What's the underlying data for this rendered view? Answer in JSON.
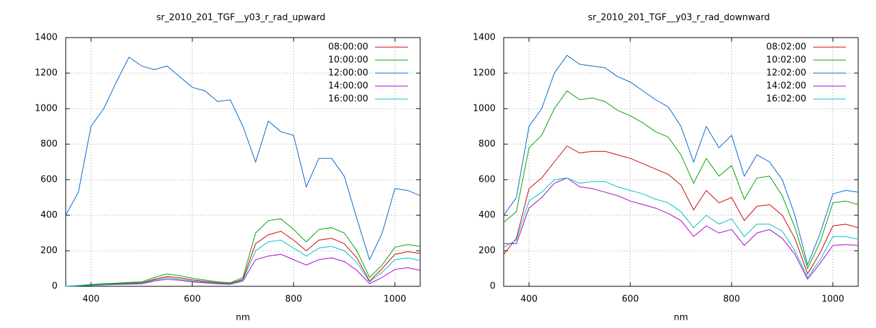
{
  "chart_data": [
    {
      "type": "line",
      "title": "sr_2010_201_TGF__y03_r_rad_upward",
      "x_label": "nm",
      "x": [
        350,
        375,
        400,
        425,
        450,
        475,
        500,
        525,
        550,
        575,
        600,
        625,
        650,
        675,
        700,
        725,
        750,
        775,
        800,
        825,
        850,
        875,
        900,
        925,
        950,
        975,
        1000,
        1025,
        1050
      ],
      "xlim": [
        350,
        1050
      ],
      "xticks": [
        400,
        600,
        800,
        1000
      ],
      "ylim": [
        0,
        1400
      ],
      "yticks": [
        0,
        200,
        400,
        600,
        800,
        1000,
        1200,
        1400
      ],
      "grid": true,
      "legend": "top-right",
      "series": [
        {
          "name": "08:00:00",
          "color": "#cc0000",
          "values": [
            0,
            4,
            8,
            12,
            15,
            18,
            20,
            40,
            55,
            48,
            36,
            28,
            20,
            16,
            40,
            240,
            290,
            310,
            260,
            200,
            260,
            270,
            240,
            160,
            30,
            100,
            180,
            195,
            185
          ]
        },
        {
          "name": "10:00:00",
          "color": "#00a000",
          "values": [
            0,
            5,
            10,
            15,
            18,
            22,
            25,
            50,
            70,
            60,
            45,
            35,
            25,
            20,
            50,
            300,
            370,
            380,
            320,
            250,
            320,
            330,
            300,
            200,
            50,
            120,
            220,
            235,
            225
          ]
        },
        {
          "name": "12:00:00",
          "color": "#0066cc",
          "values": [
            400,
            530,
            900,
            1000,
            1150,
            1290,
            1240,
            1220,
            1240,
            1180,
            1120,
            1100,
            1040,
            1050,
            900,
            700,
            930,
            870,
            850,
            560,
            720,
            720,
            620,
            380,
            150,
            300,
            550,
            540,
            510
          ]
        },
        {
          "name": "14:00:00",
          "color": "#aa00cc",
          "values": [
            0,
            2,
            5,
            8,
            10,
            12,
            14,
            30,
            40,
            34,
            25,
            19,
            14,
            11,
            30,
            150,
            170,
            180,
            150,
            120,
            150,
            160,
            140,
            90,
            15,
            50,
            95,
            105,
            90
          ]
        },
        {
          "name": "16:00:00",
          "color": "#00c0c0",
          "values": [
            0,
            3,
            6,
            10,
            12,
            15,
            17,
            35,
            48,
            40,
            30,
            23,
            17,
            13,
            35,
            200,
            250,
            260,
            215,
            170,
            215,
            225,
            200,
            135,
            25,
            80,
            150,
            160,
            145
          ]
        }
      ]
    },
    {
      "type": "line",
      "title": "sr_2010_201_TGF__y03_r_rad_downward",
      "x_label": "nm",
      "x": [
        350,
        375,
        400,
        425,
        450,
        475,
        500,
        525,
        550,
        575,
        600,
        625,
        650,
        675,
        700,
        725,
        750,
        775,
        800,
        825,
        850,
        875,
        900,
        925,
        950,
        975,
        1000,
        1025,
        1050
      ],
      "xlim": [
        350,
        1050
      ],
      "xticks": [
        400,
        600,
        800,
        1000
      ],
      "ylim": [
        0,
        1400
      ],
      "yticks": [
        0,
        200,
        400,
        600,
        800,
        1000,
        1200,
        1400
      ],
      "grid": true,
      "legend": "top-right",
      "series": [
        {
          "name": "08:02:00",
          "color": "#cc0000",
          "values": [
            180,
            270,
            550,
            610,
            700,
            790,
            750,
            760,
            760,
            740,
            720,
            690,
            660,
            630,
            570,
            430,
            540,
            470,
            500,
            370,
            450,
            460,
            400,
            270,
            70,
            190,
            340,
            350,
            330
          ]
        },
        {
          "name": "10:02:00",
          "color": "#00a000",
          "values": [
            360,
            420,
            780,
            850,
            1000,
            1100,
            1050,
            1060,
            1040,
            990,
            960,
            920,
            870,
            840,
            740,
            580,
            720,
            620,
            680,
            490,
            610,
            620,
            510,
            330,
            100,
            250,
            470,
            480,
            460
          ]
        },
        {
          "name": "12:02:00",
          "color": "#0066cc",
          "values": [
            400,
            500,
            900,
            1000,
            1200,
            1300,
            1250,
            1240,
            1230,
            1180,
            1150,
            1100,
            1050,
            1010,
            900,
            700,
            900,
            780,
            850,
            620,
            740,
            700,
            600,
            400,
            120,
            300,
            520,
            540,
            530
          ]
        },
        {
          "name": "14:02:00",
          "color": "#aa00cc",
          "values": [
            240,
            240,
            440,
            500,
            580,
            610,
            560,
            550,
            530,
            510,
            480,
            460,
            440,
            410,
            370,
            280,
            340,
            300,
            320,
            230,
            300,
            320,
            270,
            180,
            40,
            130,
            230,
            235,
            230
          ]
        },
        {
          "name": "16:02:00",
          "color": "#00c0c0",
          "values": [
            220,
            260,
            480,
            530,
            600,
            610,
            580,
            590,
            590,
            560,
            540,
            520,
            490,
            470,
            420,
            330,
            400,
            350,
            380,
            280,
            350,
            350,
            310,
            200,
            50,
            150,
            280,
            280,
            265
          ]
        }
      ]
    }
  ]
}
